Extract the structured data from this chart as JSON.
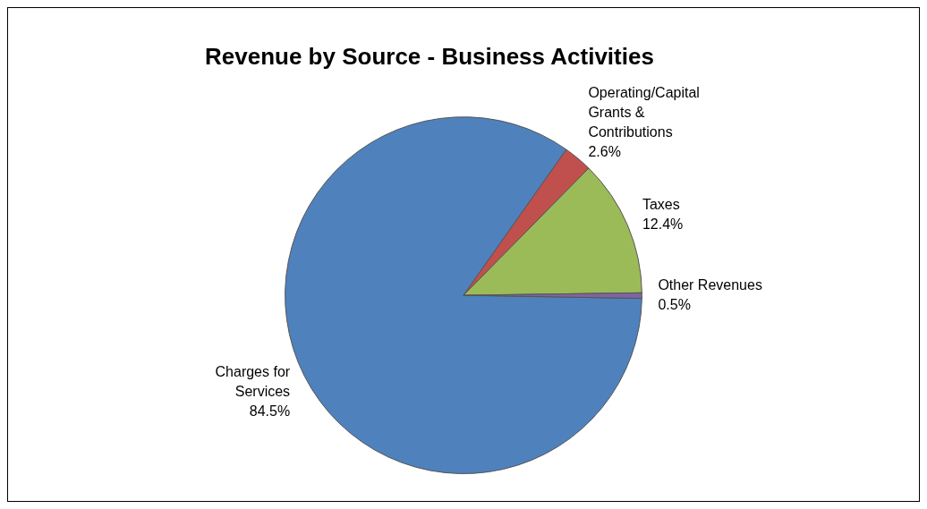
{
  "chart_data": {
    "type": "pie",
    "title": "Revenue by Source - Business Activities",
    "categories": [
      "Charges for Services",
      "Operating/Capital Grants & Contributions",
      "Taxes",
      "Other Revenues"
    ],
    "values": [
      84.5,
      2.6,
      12.4,
      0.5
    ],
    "value_labels": [
      "84.5%",
      "2.6%",
      "12.4%",
      "0.5%"
    ],
    "colors": [
      "#4f81bd",
      "#c0504d",
      "#9bbb59",
      "#8064a2"
    ],
    "legend": false
  }
}
